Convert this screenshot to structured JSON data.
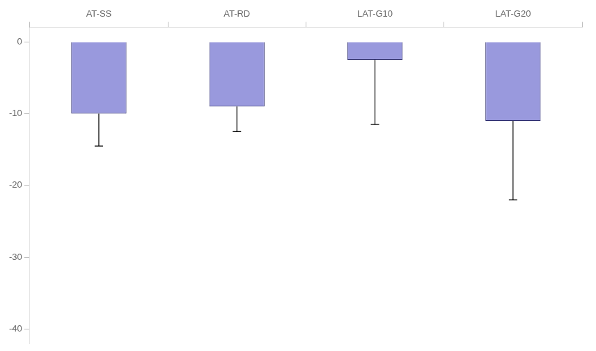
{
  "chart_data": {
    "type": "bar",
    "categories": [
      "AT-SS",
      "AT-RD",
      "LAT-G10",
      "LAT-G20"
    ],
    "values": [
      -10.0,
      -9.0,
      -2.5,
      -11.0
    ],
    "errors_down": [
      4.5,
      3.5,
      9.0,
      11.0
    ],
    "color": "#9999dd",
    "ylim": [
      -42,
      2
    ],
    "yticks": [
      0,
      -10,
      -20,
      -30,
      -40
    ],
    "grid": false
  }
}
